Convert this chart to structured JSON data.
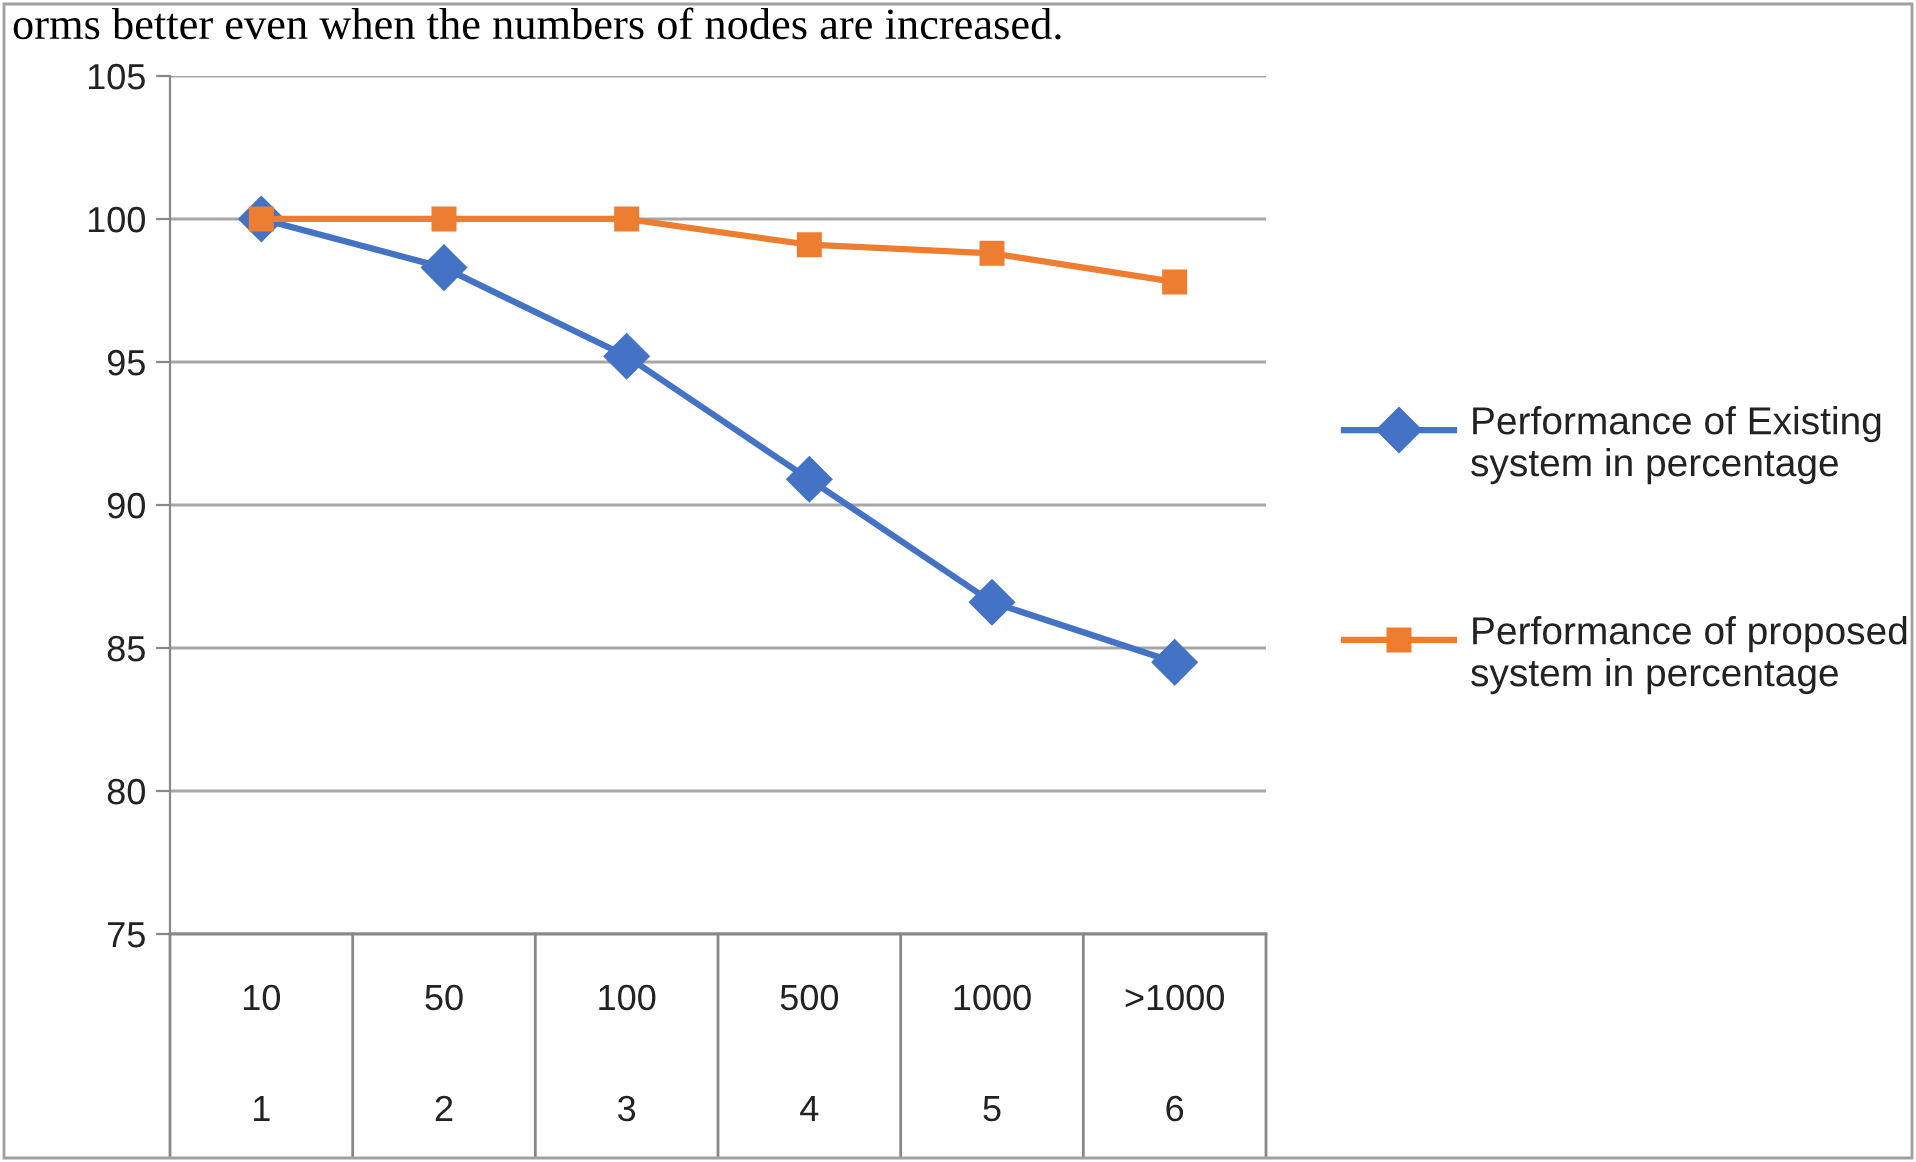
{
  "chart_data": {
    "type": "line",
    "annotations": [
      "orms better even when the numbers of nodes are increased."
    ],
    "categories": [
      "10\n1",
      "50\n2",
      "100\n3",
      "500\n4",
      "1000\n5",
      ">1000\n6"
    ],
    "series": [
      {
        "name": "Performance of Existing system in percentage",
        "color": "#4472c4",
        "marker": "diamond",
        "values": [
          100,
          98.3,
          95.2,
          90.9,
          86.6,
          84.5
        ]
      },
      {
        "name": "Performance of proposed system in percentage",
        "color": "#ed7d31",
        "marker": "square",
        "values": [
          100,
          100,
          100,
          99.1,
          98.8,
          97.8
        ]
      }
    ],
    "ylim": [
      75,
      105
    ],
    "yticks": [
      75,
      80,
      85,
      90,
      95,
      100,
      105
    ],
    "grid": "y",
    "legend": "right",
    "line_style": "solid"
  }
}
